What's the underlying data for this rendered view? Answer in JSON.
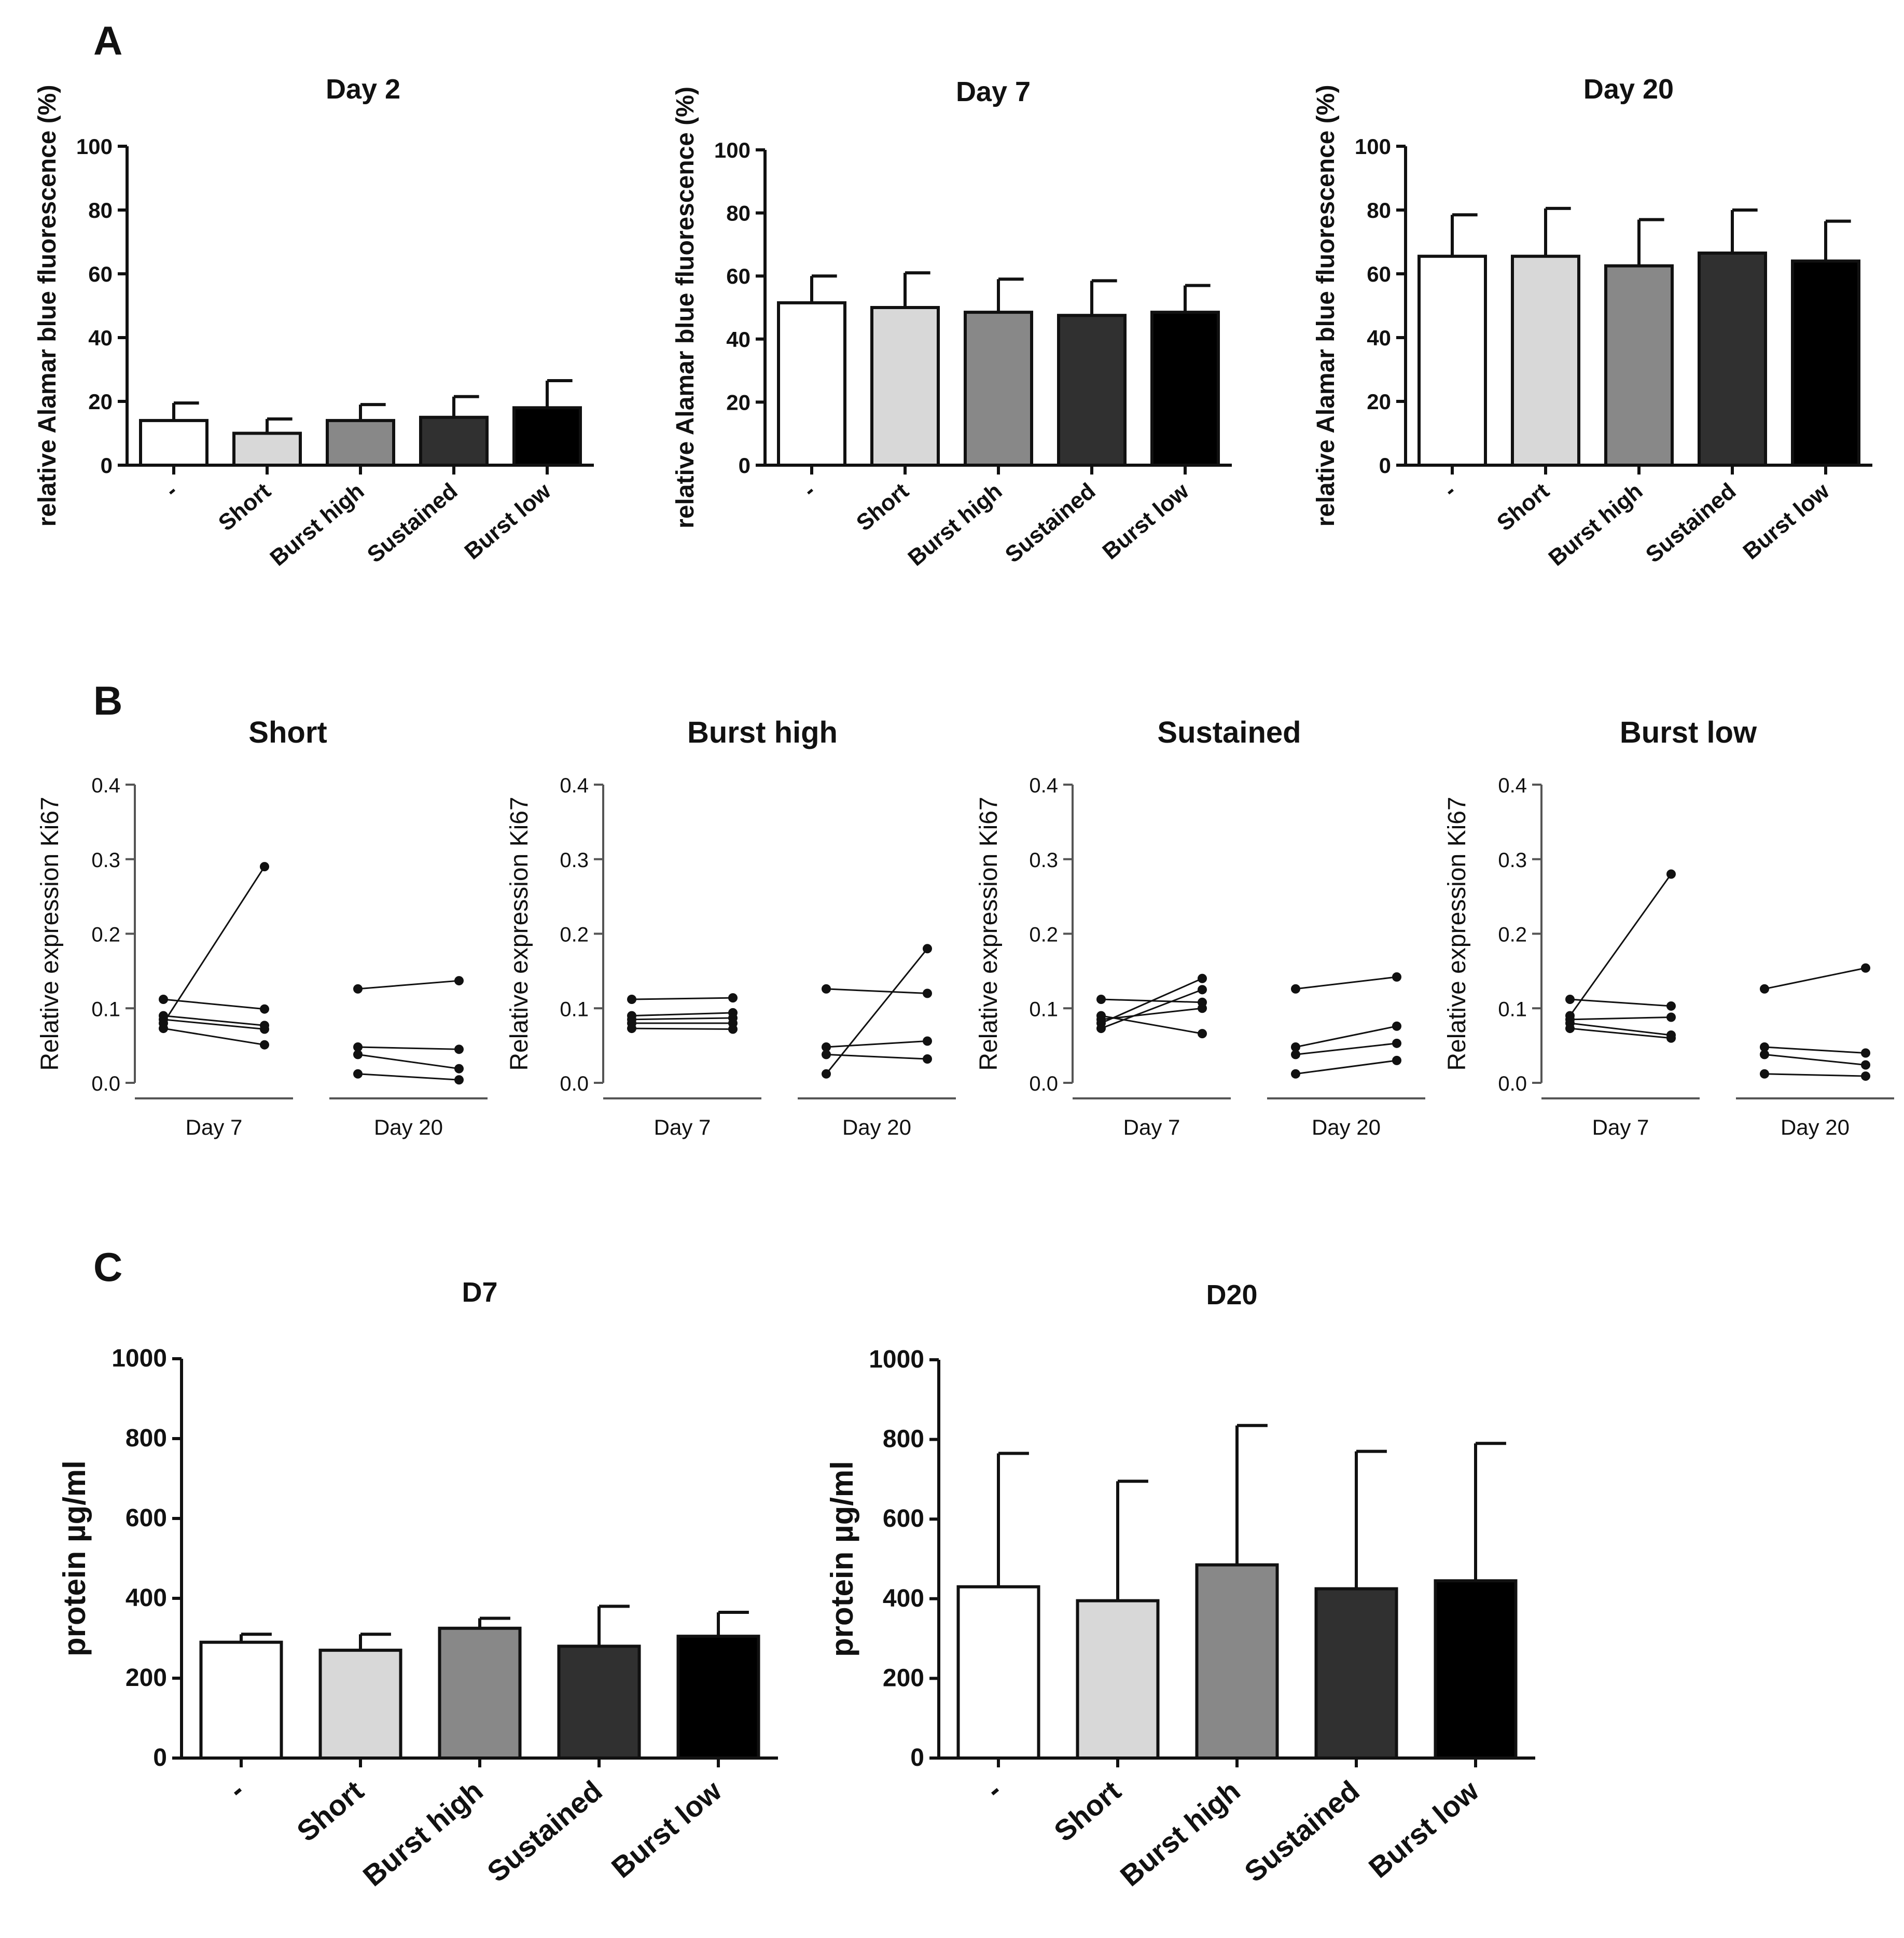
{
  "panel_letters": [
    "A",
    "B",
    "C"
  ],
  "colors": {
    "-": "#ffffff",
    "Short": "#d8d8d8",
    "Burst high": "#888888",
    "Sustained": "#303030",
    "Burst low": "#000000"
  },
  "chart_data": [
    {
      "panel": "A",
      "type": "bar",
      "title": "Day 2",
      "ylabel": "relative Alamar blue fluorescence (%)",
      "categories": [
        "-",
        "Short",
        "Burst high",
        "Sustained",
        "Burst low"
      ],
      "values": [
        14,
        10,
        14,
        15,
        18
      ],
      "error": [
        5.5,
        4.5,
        5,
        6.5,
        8.5
      ],
      "ylim": [
        0,
        100
      ],
      "yticks": [
        0,
        20,
        40,
        60,
        80,
        100
      ]
    },
    {
      "panel": "A",
      "type": "bar",
      "title": "Day 7",
      "ylabel": "relative Alamar blue fluorescence (%)",
      "categories": [
        "-",
        "Short",
        "Burst high",
        "Sustained",
        "Burst low"
      ],
      "values": [
        51.5,
        50,
        48.5,
        47.5,
        48.5
      ],
      "error": [
        8.5,
        11,
        10.5,
        11,
        8.5
      ],
      "ylim": [
        0,
        100
      ],
      "yticks": [
        0,
        20,
        40,
        60,
        80,
        100
      ]
    },
    {
      "panel": "A",
      "type": "bar",
      "title": "Day 20",
      "ylabel": "relative Alamar blue fluorescence (%)",
      "categories": [
        "-",
        "Short",
        "Burst high",
        "Sustained",
        "Burst low"
      ],
      "values": [
        65.5,
        65.5,
        62.5,
        66.5,
        64
      ],
      "error": [
        13,
        15,
        14.5,
        13.5,
        12.5
      ],
      "ylim": [
        0,
        100
      ],
      "yticks": [
        0,
        20,
        40,
        60,
        80,
        100
      ]
    },
    {
      "panel": "B",
      "type": "line",
      "title": "Short",
      "ylabel": "Relative expression Ki67",
      "groups": [
        "Day 7",
        "Day 20"
      ],
      "ylim": [
        0,
        0.4
      ],
      "yticks": [
        "0.0",
        "0.1",
        "0.2",
        "0.3",
        "0.4"
      ],
      "pairs": {
        "Day 7": [
          [
            0.112,
            0.099
          ],
          [
            0.09,
            0.077
          ],
          [
            0.085,
            0.072
          ],
          [
            0.08,
            0.29
          ],
          [
            0.073,
            0.051
          ]
        ],
        "Day 20": [
          [
            0.126,
            0.137
          ],
          [
            0.048,
            0.045
          ],
          [
            0.038,
            0.019
          ],
          [
            0.012,
            0.004
          ]
        ]
      }
    },
    {
      "panel": "B",
      "type": "line",
      "title": "Burst high",
      "ylabel": "Relative expression Ki67",
      "groups": [
        "Day 7",
        "Day 20"
      ],
      "ylim": [
        0,
        0.4
      ],
      "yticks": [
        "0.0",
        "0.1",
        "0.2",
        "0.3",
        "0.4"
      ],
      "pairs": {
        "Day 7": [
          [
            0.112,
            0.114
          ],
          [
            0.09,
            0.094
          ],
          [
            0.085,
            0.087
          ],
          [
            0.08,
            0.08
          ],
          [
            0.073,
            0.072
          ]
        ],
        "Day 20": [
          [
            0.126,
            0.12
          ],
          [
            0.048,
            0.056
          ],
          [
            0.038,
            0.032
          ],
          [
            0.012,
            0.18
          ]
        ]
      }
    },
    {
      "panel": "B",
      "type": "line",
      "title": "Sustained",
      "ylabel": "Relative expression Ki67",
      "groups": [
        "Day 7",
        "Day 20"
      ],
      "ylim": [
        0,
        0.4
      ],
      "yticks": [
        "0.0",
        "0.1",
        "0.2",
        "0.3",
        "0.4"
      ],
      "pairs": {
        "Day 7": [
          [
            0.112,
            0.108
          ],
          [
            0.09,
            0.066
          ],
          [
            0.085,
            0.1
          ],
          [
            0.08,
            0.14
          ],
          [
            0.073,
            0.125
          ]
        ],
        "Day 20": [
          [
            0.126,
            0.142
          ],
          [
            0.048,
            0.076
          ],
          [
            0.038,
            0.053
          ],
          [
            0.012,
            0.03
          ]
        ]
      }
    },
    {
      "panel": "B",
      "type": "line",
      "title": "Burst low",
      "ylabel": "Relative expression Ki67",
      "groups": [
        "Day 7",
        "Day 20"
      ],
      "ylim": [
        0,
        0.4
      ],
      "yticks": [
        "0.0",
        "0.1",
        "0.2",
        "0.3",
        "0.4"
      ],
      "pairs": {
        "Day 7": [
          [
            0.112,
            0.103
          ],
          [
            0.09,
            0.28
          ],
          [
            0.085,
            0.088
          ],
          [
            0.08,
            0.064
          ],
          [
            0.073,
            0.06
          ]
        ],
        "Day 20": [
          [
            0.126,
            0.154
          ],
          [
            0.048,
            0.04
          ],
          [
            0.038,
            0.024
          ],
          [
            0.012,
            0.009
          ]
        ]
      }
    },
    {
      "panel": "C",
      "type": "bar",
      "title": "D7",
      "ylabel": "protein µg/ml",
      "categories": [
        "-",
        "Short",
        "Burst high",
        "Sustained",
        "Burst low"
      ],
      "values": [
        290,
        270,
        325,
        280,
        305
      ],
      "error": [
        20,
        40,
        25,
        100,
        60
      ],
      "ylim": [
        0,
        1000
      ],
      "yticks": [
        0,
        200,
        400,
        600,
        800,
        1000
      ]
    },
    {
      "panel": "C",
      "type": "bar",
      "title": "D20",
      "ylabel": "protein µg/ml",
      "categories": [
        "-",
        "Short",
        "Burst high",
        "Sustained",
        "Burst low"
      ],
      "values": [
        430,
        395,
        485,
        425,
        445
      ],
      "error": [
        335,
        300,
        350,
        345,
        345
      ],
      "ylim": [
        0,
        1000
      ],
      "yticks": [
        0,
        200,
        400,
        600,
        800,
        1000
      ]
    }
  ]
}
